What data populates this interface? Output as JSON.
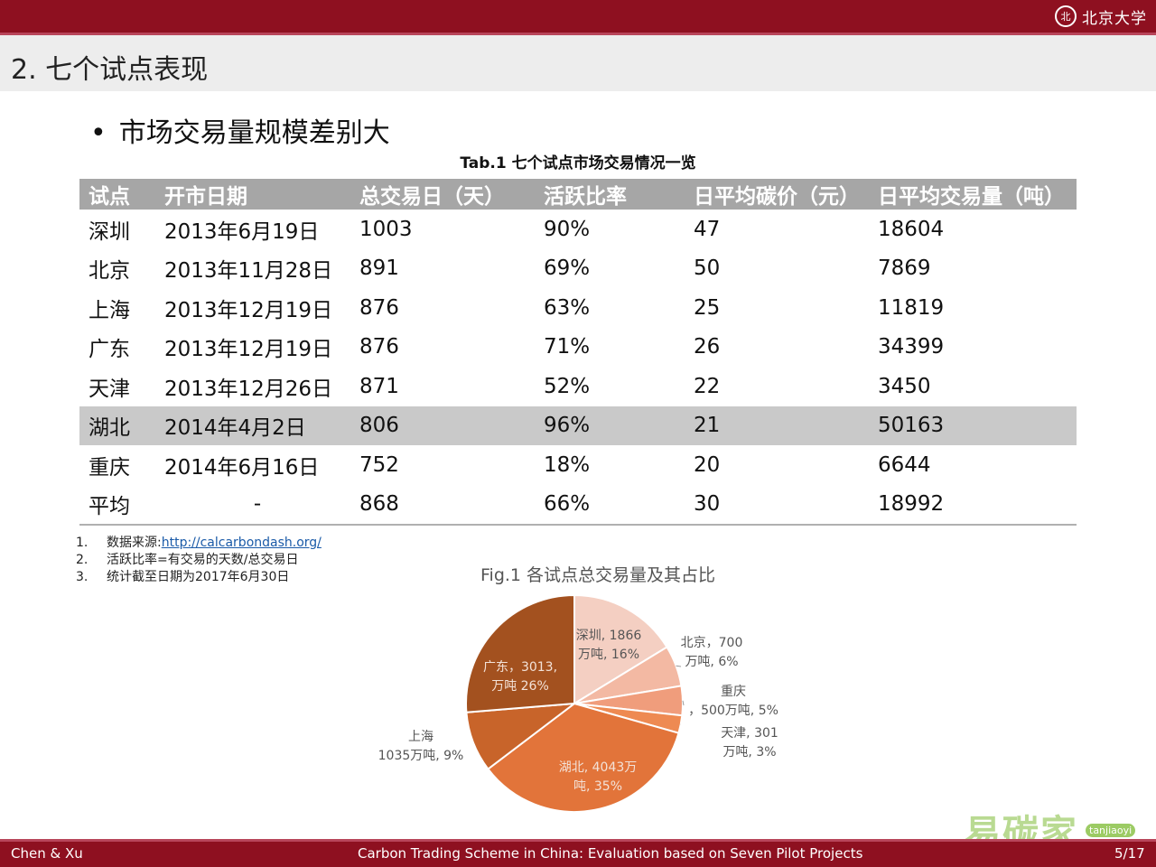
{
  "header": {
    "logo_text": "北京大学",
    "seal_glyph": "北"
  },
  "slide_title": "2. 七个试点表现",
  "bullet": "市场交易量规模差别大",
  "table": {
    "caption": "Tab.1 七个试点市场交易情况一览",
    "headers": [
      "试点",
      "开市日期",
      "总交易日（天）",
      "活跃比率",
      "日平均碳价（元）",
      "日平均交易量（吨）"
    ],
    "rows": [
      [
        "深圳",
        "2013年6月19日",
        "1003",
        "90%",
        "47",
        "18604"
      ],
      [
        "北京",
        "2013年11月28日",
        "891",
        "69%",
        "50",
        "7869"
      ],
      [
        "上海",
        "2013年12月19日",
        "876",
        "63%",
        "25",
        "11819"
      ],
      [
        "广东",
        "2013年12月19日",
        "876",
        "71%",
        "26",
        "34399"
      ],
      [
        "天津",
        "2013年12月26日",
        "871",
        "52%",
        "22",
        "3450"
      ],
      [
        "湖北",
        "2014年4月2日",
        "806",
        "96%",
        "21",
        "50163"
      ],
      [
        "重庆",
        "2014年6月16日",
        "752",
        "18%",
        "20",
        "6644"
      ],
      [
        "平均",
        "-",
        "868",
        "66%",
        "30",
        "18992"
      ]
    ],
    "highlight_row": 5
  },
  "notes": [
    {
      "num": "1.",
      "prefix": "数据来源: ",
      "link": "http://calcarbondash.org/"
    },
    {
      "num": "2.",
      "prefix": "活跃比率=有交易的天数/总交易日",
      "link": ""
    },
    {
      "num": "3.",
      "prefix": "统计截至日期为2017年6月30日",
      "link": ""
    }
  ],
  "chart_data": {
    "type": "pie",
    "title": "Fig.1 各试点总交易量及其占比",
    "unit": "万吨",
    "slices": [
      {
        "name": "深圳",
        "value": 1866,
        "percent": 16,
        "color": "#f4cfc2",
        "label": [
          "深圳, 1866",
          "万吨, 16%"
        ]
      },
      {
        "name": "北京",
        "value": 700,
        "percent": 6,
        "color": "#f3b9a3",
        "label": [
          "北京，700",
          "万吨, 6%"
        ]
      },
      {
        "name": "重庆",
        "value": 500,
        "percent": 5,
        "color": "#f09d7c",
        "label": [
          "重庆",
          "，500万吨, 5%"
        ]
      },
      {
        "name": "天津",
        "value": 301,
        "percent": 3,
        "color": "#ee8a52",
        "label": [
          "天津, 301",
          "万吨, 3%"
        ]
      },
      {
        "name": "湖北",
        "value": 4043,
        "percent": 35,
        "color": "#e2743a",
        "label": [
          "湖北, 4043万",
          "吨, 35%"
        ]
      },
      {
        "name": "上海",
        "value": 1035,
        "percent": 9,
        "color": "#c8642a",
        "label": [
          "上海",
          "1035万吨, 9%"
        ]
      },
      {
        "name": "广东",
        "value": 3013,
        "percent": 26,
        "color": "#a3511f",
        "label": [
          "广东，3013,",
          "万吨 26%"
        ]
      }
    ]
  },
  "footer": {
    "left": "Chen & Xu",
    "center": "Carbon Trading Scheme in China: Evaluation based on Seven Pilot Projects",
    "page": "5/17"
  },
  "watermark": {
    "text": "易碳家",
    "badge": "tanjiaoyi"
  }
}
